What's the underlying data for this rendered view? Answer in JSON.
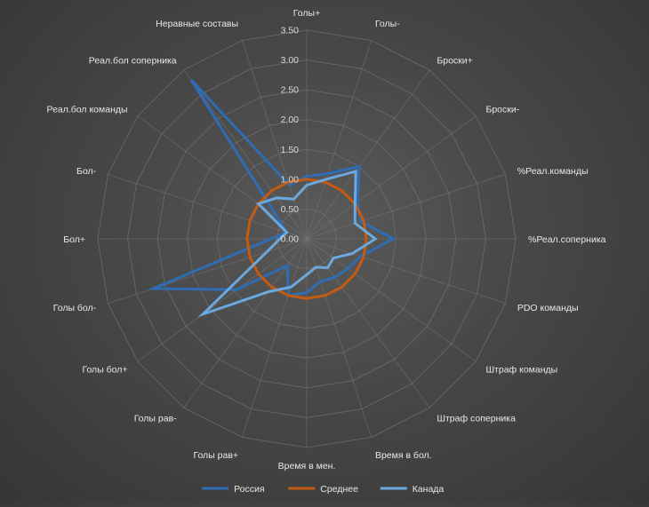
{
  "chart_data": {
    "type": "radar",
    "title": "",
    "categories": [
      "Голы+",
      "Голы-",
      "Броски+",
      "Броски-",
      "%Реал.команды",
      "%Реал.соперника",
      "PDO команды",
      "Штраф команды",
      "Штраф соперника",
      "Время в бол.",
      "Время в мен.",
      "Голы рав+",
      "Голы рав-",
      "Голы бол+",
      "Голы бол-",
      "Бол+",
      "Бол-",
      "Реал.бол команды",
      "Реал.бол соперника",
      "Неравные составы"
    ],
    "rlim": [
      0,
      3.5
    ],
    "ticks": [
      0,
      0.5,
      1.0,
      1.5,
      2.0,
      2.5,
      3.0,
      3.5
    ],
    "tick_labels": [
      "0.00",
      "0.50",
      "1.00",
      "1.50",
      "2.00",
      "2.50",
      "3.00",
      "3.50"
    ],
    "grid": true,
    "legend_position": "bottom",
    "series": [
      {
        "name": "Россия",
        "color": "#2e6db4",
        "values": [
          1.05,
          1.15,
          1.5,
          1.05,
          0.95,
          1.45,
          0.95,
          0.85,
          0.8,
          0.75,
          0.9,
          1.0,
          0.55,
          1.45,
          2.7,
          0.6,
          0.35,
          0.6,
          3.3,
          0.95
        ]
      },
      {
        "name": "Среднее",
        "color": "#c55a11",
        "values": [
          1,
          1,
          1,
          1,
          1,
          1,
          1,
          1,
          1,
          1,
          1,
          1,
          1,
          1,
          1,
          1,
          1,
          1,
          1,
          1
        ]
      },
      {
        "name": "Канада",
        "color": "#6aa8de",
        "values": [
          0.9,
          1.05,
          1.4,
          1.0,
          0.85,
          1.15,
          0.8,
          0.55,
          0.6,
          0.5,
          0.6,
          0.85,
          1.1,
          2.15,
          0.7,
          0.45,
          0.35,
          1.0,
          0.85,
          0.7
        ]
      }
    ]
  }
}
